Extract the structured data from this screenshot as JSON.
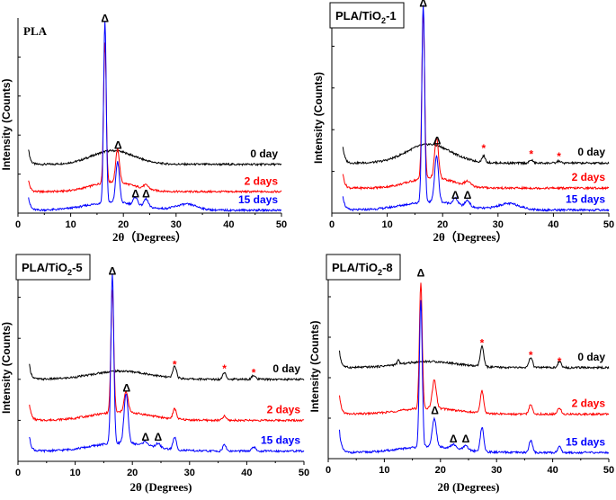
{
  "chart_data": [
    {
      "type": "line",
      "title": "PLA",
      "title_parts": [
        "PLA",
        "",
        ""
      ],
      "boxed": false,
      "xlabel": "2θ（Degrees）",
      "ylabel": "Intensity (Counts)",
      "xlim": [
        0,
        50
      ],
      "ylim": [
        0,
        100
      ],
      "xticks": [
        "0",
        "10",
        "20",
        "30",
        "40",
        "50"
      ],
      "grid": false,
      "series": [
        {
          "name": "0 day",
          "color": "#000000",
          "offset": 25,
          "rise": 8,
          "hump": [
            18,
            7,
            4
          ],
          "peaks": []
        },
        {
          "name": "2 days",
          "color": "#ff0000",
          "offset": 11,
          "rise": 6,
          "hump": [
            18,
            5,
            4
          ],
          "peaks": [
            [
              16.5,
              72,
              0.25
            ],
            [
              18.9,
              17,
              0.35
            ],
            [
              24.3,
              2,
              0.5
            ]
          ]
        },
        {
          "name": "15 days",
          "color": "#0000ff",
          "offset": 1.5,
          "rise": 7,
          "hump": [
            18,
            4,
            5
          ],
          "peaks": [
            [
              16.5,
              93,
              0.25
            ],
            [
              18.9,
              21,
              0.35
            ],
            [
              22.3,
              4,
              0.4
            ],
            [
              24.3,
              4,
              0.4
            ],
            [
              32,
              3,
              2
            ]
          ]
        }
      ],
      "markers": [
        {
          "symbol": "Δ",
          "x": 16.5,
          "y": 98,
          "color": "#000000"
        },
        {
          "symbol": "Δ",
          "x": 19,
          "y": 33,
          "color": "#000000"
        },
        {
          "symbol": "Δ",
          "x": 22.3,
          "y": 8,
          "color": "#000000"
        },
        {
          "symbol": "Δ",
          "x": 24.3,
          "y": 8,
          "color": "#000000"
        }
      ]
    },
    {
      "type": "line",
      "title": "PLA/TiO2-1",
      "title_parts": [
        "PLA/TiO",
        "2",
        "-1"
      ],
      "boxed": true,
      "xlabel": "2θ（Degrees）",
      "ylabel": "Intensity (Counts)",
      "xlim": [
        0,
        50
      ],
      "ylim": [
        0,
        100
      ],
      "xticks": [
        "0",
        "10",
        "20",
        "30",
        "40",
        "50"
      ],
      "grid": false,
      "series": [
        {
          "name": "0 day",
          "color": "#000000",
          "offset": 24,
          "rise": 8,
          "hump": [
            17.5,
            9,
            4
          ],
          "peaks": [
            [
              27.4,
              3,
              0.3
            ],
            [
              36,
              1.5,
              0.3
            ],
            [
              41,
              1,
              0.3
            ]
          ]
        },
        {
          "name": "2 days",
          "color": "#ff0000",
          "offset": 12,
          "rise": 7,
          "hump": [
            18,
            5,
            4
          ],
          "peaks": [
            [
              16.5,
              80,
              0.25
            ],
            [
              18.9,
              19,
              0.35
            ],
            [
              24.5,
              2,
              0.5
            ]
          ]
        },
        {
          "name": "15 days",
          "color": "#0000ff",
          "offset": 1.5,
          "rise": 7,
          "hump": [
            18,
            4,
            5
          ],
          "peaks": [
            [
              16.5,
              95,
              0.25
            ],
            [
              18.9,
              22,
              0.35
            ],
            [
              22.3,
              3,
              0.4
            ],
            [
              24.5,
              3,
              0.4
            ],
            [
              32,
              3,
              2
            ]
          ]
        }
      ],
      "markers": [
        {
          "symbol": "Δ",
          "x": 16.5,
          "y": 99,
          "color": "#000000"
        },
        {
          "symbol": "Δ",
          "x": 19,
          "y": 33,
          "color": "#000000"
        },
        {
          "symbol": "Δ",
          "x": 22.3,
          "y": 7,
          "color": "#000000"
        },
        {
          "symbol": "Δ",
          "x": 24.5,
          "y": 7,
          "color": "#000000"
        },
        {
          "symbol": "*",
          "x": 27.4,
          "y": 32,
          "color": "#ff0000"
        },
        {
          "symbol": "*",
          "x": 36,
          "y": 29,
          "color": "#ff0000"
        },
        {
          "symbol": "*",
          "x": 41,
          "y": 28,
          "color": "#ff0000"
        }
      ]
    },
    {
      "type": "line",
      "title": "PLA/TiO2-5",
      "title_parts": [
        "PLA/TiO",
        "2",
        "-5"
      ],
      "boxed": true,
      "xlabel": "2θ (Degrees)",
      "ylabel": "Intensity (Counts)",
      "xlim": [
        0,
        50
      ],
      "ylim": [
        0,
        100
      ],
      "xticks": [
        "0",
        "10",
        "20",
        "30",
        "40",
        "50"
      ],
      "grid": false,
      "series": [
        {
          "name": "0 day",
          "color": "#000000",
          "offset": 40,
          "rise": 7,
          "hump": [
            18,
            4,
            5
          ],
          "peaks": [
            [
              27.4,
              6,
              0.3
            ],
            [
              36.1,
              3.5,
              0.3
            ],
            [
              41.2,
              2,
              0.3
            ]
          ]
        },
        {
          "name": "2 days",
          "color": "#ff0000",
          "offset": 20,
          "rise": 8,
          "hump": [
            18,
            4,
            5
          ],
          "peaks": [
            [
              16.5,
              60,
              0.25
            ],
            [
              18.9,
              10,
              0.35
            ],
            [
              27.4,
              5,
              0.3
            ],
            [
              36.1,
              2,
              0.3
            ]
          ]
        },
        {
          "name": "15 days",
          "color": "#0000ff",
          "offset": 5,
          "rise": 7,
          "hump": [
            18,
            4,
            5
          ],
          "peaks": [
            [
              16.5,
              83,
              0.25
            ],
            [
              18.9,
              24,
              0.35
            ],
            [
              22.3,
              2,
              0.4
            ],
            [
              24.5,
              2,
              0.4
            ],
            [
              27.4,
              6,
              0.3
            ],
            [
              36.1,
              3,
              0.3
            ],
            [
              41.2,
              2,
              0.3
            ]
          ]
        }
      ],
      "markers": [
        {
          "symbol": "Δ",
          "x": 16.5,
          "y": 91,
          "color": "#000000"
        },
        {
          "symbol": "Δ",
          "x": 19,
          "y": 34,
          "color": "#000000"
        },
        {
          "symbol": "Δ",
          "x": 22.3,
          "y": 10,
          "color": "#000000"
        },
        {
          "symbol": "Δ",
          "x": 24.5,
          "y": 10,
          "color": "#000000"
        },
        {
          "symbol": "*",
          "x": 27.4,
          "y": 48,
          "color": "#ff0000"
        },
        {
          "symbol": "*",
          "x": 36.1,
          "y": 46,
          "color": "#ff0000"
        },
        {
          "symbol": "*",
          "x": 41.2,
          "y": 44,
          "color": "#ff0000"
        }
      ]
    },
    {
      "type": "line",
      "title": "PLA/TiO2-8",
      "title_parts": [
        "PLA/TiO",
        "2",
        "-8"
      ],
      "boxed": true,
      "xlabel": "2θ (Degrees)",
      "ylabel": "Intensity (Counts)",
      "xlim": [
        0,
        50
      ],
      "ylim": [
        0,
        100
      ],
      "xticks": [
        "0",
        "10",
        "20",
        "30",
        "40",
        "50"
      ],
      "grid": false,
      "series": [
        {
          "name": "0 day",
          "color": "#000000",
          "offset": 45,
          "rise": 8,
          "hump": [
            18,
            3,
            5
          ],
          "peaks": [
            [
              12.5,
              2,
              0.2
            ],
            [
              27.4,
              10,
              0.3
            ],
            [
              36.1,
              5,
              0.3
            ],
            [
              41.2,
              3,
              0.3
            ]
          ]
        },
        {
          "name": "2 days",
          "color": "#ff0000",
          "offset": 22,
          "rise": 9,
          "hump": [
            18,
            3,
            5
          ],
          "peaks": [
            [
              16.5,
              62,
              0.25
            ],
            [
              18.9,
              14,
              0.35
            ],
            [
              27.4,
              11,
              0.3
            ],
            [
              36.1,
              5,
              0.3
            ],
            [
              41.2,
              3,
              0.3
            ]
          ]
        },
        {
          "name": "15 days",
          "color": "#0000ff",
          "offset": 3,
          "rise": 11,
          "hump": [
            18,
            3,
            5
          ],
          "peaks": [
            [
              16.5,
              72,
              0.25
            ],
            [
              18.9,
              14,
              0.35
            ],
            [
              22.3,
              2,
              0.4
            ],
            [
              24.5,
              2,
              0.4
            ],
            [
              27.4,
              12,
              0.3
            ],
            [
              36.1,
              6,
              0.3
            ],
            [
              41.2,
              3,
              0.3
            ]
          ]
        }
      ],
      "markers": [
        {
          "symbol": "Δ",
          "x": 16.5,
          "y": 90,
          "color": "#000000"
        },
        {
          "symbol": "Δ",
          "x": 19,
          "y": 22,
          "color": "#000000"
        },
        {
          "symbol": "Δ",
          "x": 22.3,
          "y": 8,
          "color": "#000000"
        },
        {
          "symbol": "Δ",
          "x": 24.5,
          "y": 8,
          "color": "#000000"
        },
        {
          "symbol": "*",
          "x": 27.4,
          "y": 58,
          "color": "#ff0000"
        },
        {
          "symbol": "*",
          "x": 36.1,
          "y": 52,
          "color": "#ff0000"
        },
        {
          "symbol": "*",
          "x": 41.2,
          "y": 49,
          "color": "#ff0000"
        }
      ]
    }
  ]
}
